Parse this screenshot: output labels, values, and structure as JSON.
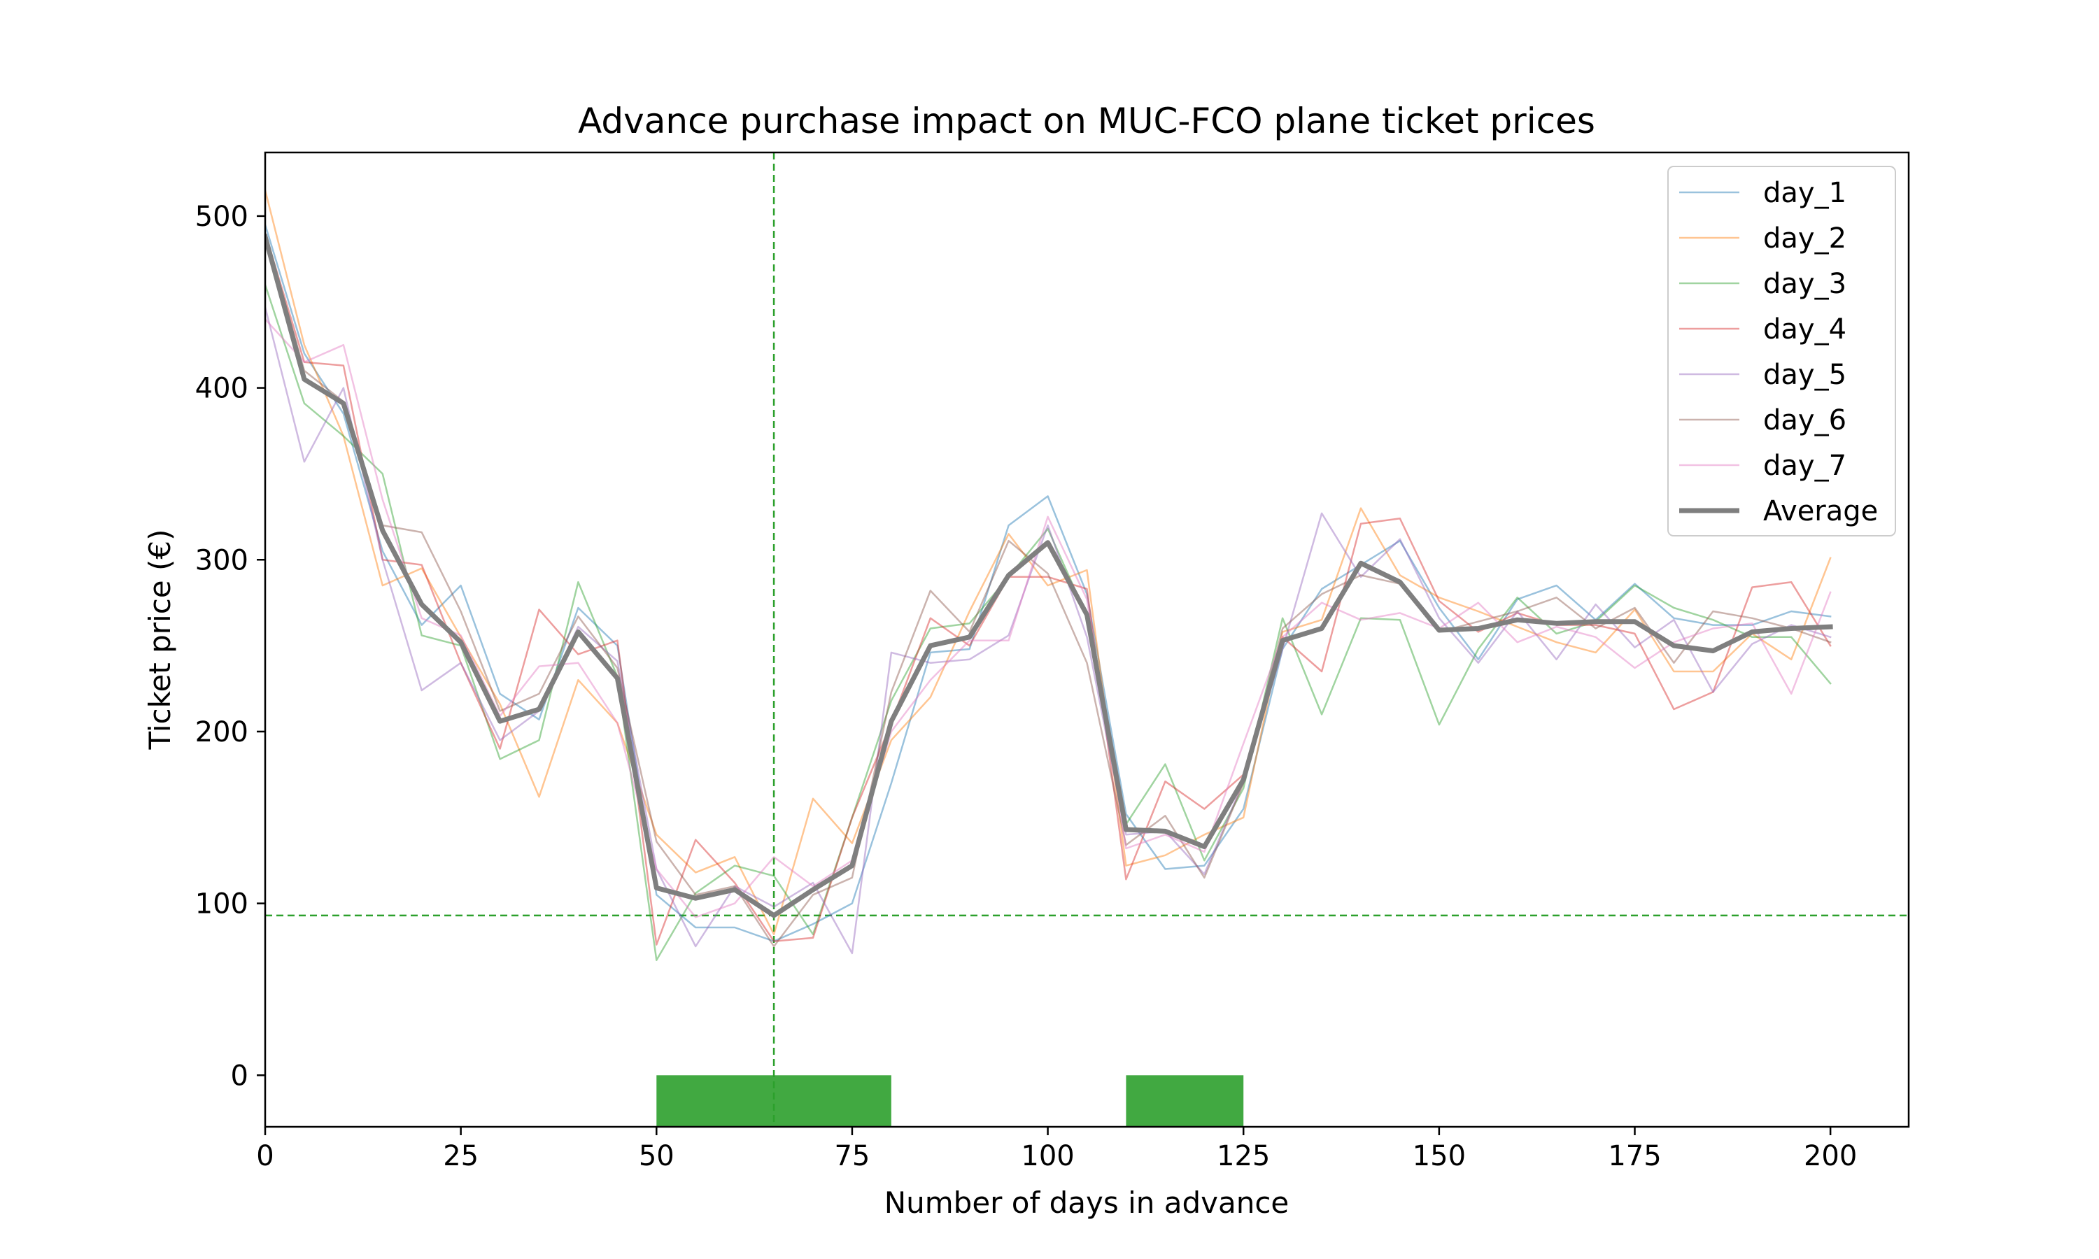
{
  "chart_data": {
    "type": "line",
    "title": "Advance purchase impact on MUC-FCO plane ticket prices",
    "xlabel": "Number of days in advance",
    "ylabel": "Ticket price (€)",
    "xlim": [
      0,
      210
    ],
    "ylim": [
      -30,
      537
    ],
    "xticks": [
      0,
      25,
      50,
      75,
      100,
      125,
      150,
      175,
      200
    ],
    "yticks": [
      0,
      100,
      200,
      300,
      400,
      500
    ],
    "grid": false,
    "legend_position": "top-right",
    "x": [
      0,
      5,
      10,
      15,
      20,
      25,
      30,
      35,
      40,
      45,
      50,
      55,
      60,
      65,
      70,
      75,
      80,
      85,
      90,
      95,
      100,
      105,
      110,
      115,
      120,
      125,
      130,
      135,
      140,
      145,
      150,
      155,
      160,
      165,
      170,
      175,
      180,
      185,
      190,
      195,
      200
    ],
    "series": [
      {
        "name": "day_1",
        "color": "#1f77b4",
        "values": [
          495,
          420,
          385,
          305,
          262,
          285,
          222,
          207,
          272,
          250,
          105,
          86,
          86,
          78,
          88,
          100,
          170,
          246,
          248,
          320,
          337,
          280,
          152,
          120,
          122,
          155,
          248,
          283,
          297,
          311,
          272,
          242,
          277,
          285,
          265,
          286,
          266,
          262,
          262,
          270,
          267
        ]
      },
      {
        "name": "day_2",
        "color": "#ff7f0e",
        "values": [
          515,
          425,
          372,
          285,
          295,
          255,
          216,
          162,
          230,
          205,
          140,
          118,
          127,
          82,
          161,
          135,
          195,
          220,
          270,
          315,
          285,
          294,
          122,
          128,
          140,
          150,
          258,
          265,
          330,
          291,
          278,
          270,
          261,
          252,
          246,
          271,
          235,
          235,
          257,
          242,
          301
        ]
      },
      {
        "name": "day_3",
        "color": "#2ca02c",
        "values": [
          460,
          391,
          372,
          350,
          256,
          250,
          184,
          195,
          287,
          232,
          67,
          106,
          122,
          116,
          82,
          150,
          218,
          260,
          263,
          290,
          318,
          267,
          146,
          181,
          125,
          167,
          266,
          210,
          266,
          265,
          204,
          248,
          278,
          257,
          264,
          285,
          272,
          265,
          255,
          255,
          228
        ]
      },
      {
        "name": "day_4",
        "color": "#d62728",
        "values": [
          490,
          415,
          413,
          300,
          297,
          240,
          190,
          271,
          245,
          253,
          76,
          137,
          112,
          78,
          80,
          150,
          205,
          266,
          250,
          290,
          290,
          283,
          114,
          171,
          155,
          175,
          255,
          235,
          321,
          324,
          276,
          258,
          269,
          262,
          262,
          257,
          213,
          223,
          284,
          287,
          250
        ]
      },
      {
        "name": "day_5",
        "color": "#9467bd",
        "values": [
          447,
          357,
          400,
          300,
          224,
          240,
          195,
          212,
          261,
          241,
          120,
          75,
          110,
          98,
          112,
          71,
          246,
          240,
          242,
          256,
          320,
          255,
          140,
          142,
          117,
          171,
          248,
          327,
          290,
          312,
          266,
          240,
          270,
          242,
          274,
          249,
          265,
          223,
          251,
          262,
          255
        ]
      },
      {
        "name": "day_6",
        "color": "#8c564b",
        "values": [
          490,
          410,
          392,
          320,
          316,
          270,
          212,
          222,
          267,
          237,
          136,
          105,
          110,
          75,
          105,
          115,
          223,
          282,
          258,
          311,
          292,
          240,
          134,
          151,
          115,
          170,
          260,
          280,
          291,
          286,
          258,
          264,
          270,
          278,
          260,
          272,
          240,
          270,
          266,
          260,
          252
        ]
      },
      {
        "name": "day_7",
        "color": "#e377c2",
        "values": [
          440,
          415,
          425,
          335,
          266,
          256,
          209,
          238,
          240,
          205,
          120,
          92,
          100,
          127,
          110,
          125,
          200,
          230,
          253,
          253,
          325,
          277,
          132,
          140,
          130,
          193,
          255,
          275,
          265,
          269,
          260,
          275,
          252,
          261,
          255,
          237,
          252,
          260,
          263,
          222,
          281
        ]
      },
      {
        "name": "Average",
        "color": "#7f7f7f",
        "values": [
          488,
          405,
          391,
          317,
          274,
          252,
          206,
          213,
          258,
          231,
          109,
          103,
          108,
          93,
          108,
          122,
          206,
          250,
          255,
          291,
          310,
          268,
          143,
          142,
          133,
          172,
          253,
          260,
          298,
          287,
          259,
          260,
          265,
          263,
          264,
          264,
          250,
          247,
          258,
          260,
          261
        ]
      }
    ],
    "reference_lines": {
      "color": "#2ca02c",
      "vertical_x": 65,
      "horizontal_y": 93
    },
    "highlight_bars": {
      "color": "#2ca02c",
      "y_top": 0,
      "ranges": [
        [
          50,
          80
        ],
        [
          110,
          125
        ]
      ]
    }
  }
}
